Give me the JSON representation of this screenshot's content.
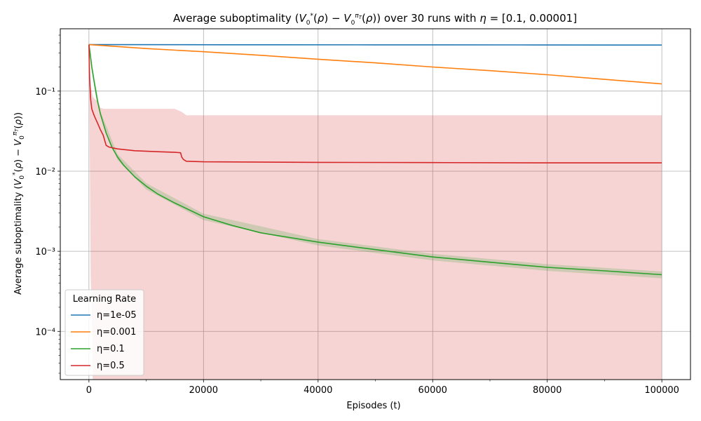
{
  "chart_data": {
    "type": "line",
    "title": "Average suboptimality (V₀*(ρ) − V₀^πT(ρ)) over 30 runs with η = [0.1, 0.00001]",
    "xlabel": "Episodes (t)",
    "ylabel": "Average suboptimality (V₀*(ρ) − V₀^πT(ρ))",
    "xlim": [
      -5000,
      105000
    ],
    "ylim": [
      2.5e-05,
      0.6
    ],
    "yscale": "log",
    "grid": true,
    "x_ticks": [
      0,
      20000,
      40000,
      60000,
      80000,
      100000
    ],
    "x_tick_labels": [
      "0",
      "20000",
      "40000",
      "60000",
      "80000",
      "100000"
    ],
    "y_ticks": [
      0.0001,
      0.001,
      0.01,
      0.1
    ],
    "y_tick_labels": [
      "10⁻⁴",
      "10⁻³",
      "10⁻²",
      "10⁻¹"
    ],
    "legend": {
      "title": "Learning Rate",
      "placement": "lower-left",
      "entries": [
        "η=1e-05",
        "η=0.001",
        "η=0.1",
        "η=0.5"
      ]
    },
    "series": [
      {
        "name": "η=1e-05",
        "color": "#1f77b4",
        "x": [
          0,
          25000,
          50000,
          75000,
          100000
        ],
        "values": [
          0.38,
          0.379,
          0.378,
          0.377,
          0.376
        ]
      },
      {
        "name": "η=0.001",
        "color": "#ff7f0e",
        "x": [
          0,
          10000,
          20000,
          30000,
          40000,
          50000,
          60000,
          70000,
          80000,
          90000,
          100000
        ],
        "values": [
          0.38,
          0.34,
          0.31,
          0.28,
          0.25,
          0.225,
          0.2,
          0.18,
          0.16,
          0.14,
          0.123
        ]
      },
      {
        "name": "η=0.1",
        "color": "#2ca02c",
        "x": [
          0,
          200,
          500,
          1000,
          1500,
          2000,
          3000,
          4000,
          5000,
          6000,
          8000,
          10000,
          12000,
          15000,
          20000,
          25000,
          30000,
          40000,
          50000,
          60000,
          70000,
          80000,
          90000,
          100000
        ],
        "values": [
          0.38,
          0.3,
          0.2,
          0.12,
          0.075,
          0.052,
          0.03,
          0.02,
          0.015,
          0.012,
          0.0085,
          0.0065,
          0.0052,
          0.004,
          0.0027,
          0.0021,
          0.0017,
          0.0013,
          0.00105,
          0.00085,
          0.00073,
          0.00063,
          0.00057,
          0.00051
        ]
      },
      {
        "name": "η=0.5",
        "color": "#d62728",
        "x": [
          0,
          100,
          300,
          500,
          800,
          1000,
          1500,
          2000,
          2500,
          3000,
          3500,
          5000,
          8000,
          12000,
          15000,
          16000,
          16200,
          16500,
          17000,
          20000,
          40000,
          60000,
          80000,
          100000
        ],
        "values": [
          0.38,
          0.15,
          0.08,
          0.06,
          0.052,
          0.048,
          0.04,
          0.033,
          0.028,
          0.021,
          0.02,
          0.019,
          0.018,
          0.0175,
          0.0172,
          0.017,
          0.015,
          0.014,
          0.0133,
          0.0131,
          0.0129,
          0.0128,
          0.0127,
          0.0127
        ]
      }
    ],
    "bands": [
      {
        "series": "η=0.5",
        "color": "#d62728",
        "opacity": 0.2,
        "x": [
          0,
          300,
          600,
          700,
          1000,
          1500,
          2000,
          2500,
          3000,
          5000,
          10000,
          15000,
          16200,
          17000,
          100000
        ],
        "upper": [
          0.38,
          0.12,
          0.09,
          0.085,
          0.08,
          0.075,
          0.062,
          0.06,
          0.06,
          0.06,
          0.06,
          0.06,
          0.055,
          0.05,
          0.05
        ],
        "lower": [
          0.38,
          0.0005,
          8e-05,
          1e-06,
          1e-06,
          1e-06,
          1e-06,
          1e-06,
          1e-06,
          1e-06,
          1e-06,
          1e-06,
          1e-06,
          1e-06,
          1e-06
        ]
      },
      {
        "series": "η=0.1",
        "color": "#2ca02c",
        "opacity": 0.2,
        "x": [
          0,
          2000,
          5000,
          10000,
          20000,
          40000,
          60000,
          80000,
          100000
        ],
        "upper": [
          0.38,
          0.056,
          0.0163,
          0.0071,
          0.00295,
          0.00142,
          0.00093,
          0.00069,
          0.00056
        ],
        "lower": [
          0.38,
          0.048,
          0.0138,
          0.0059,
          0.00245,
          0.00118,
          0.00077,
          0.00057,
          0.00046
        ]
      }
    ]
  }
}
